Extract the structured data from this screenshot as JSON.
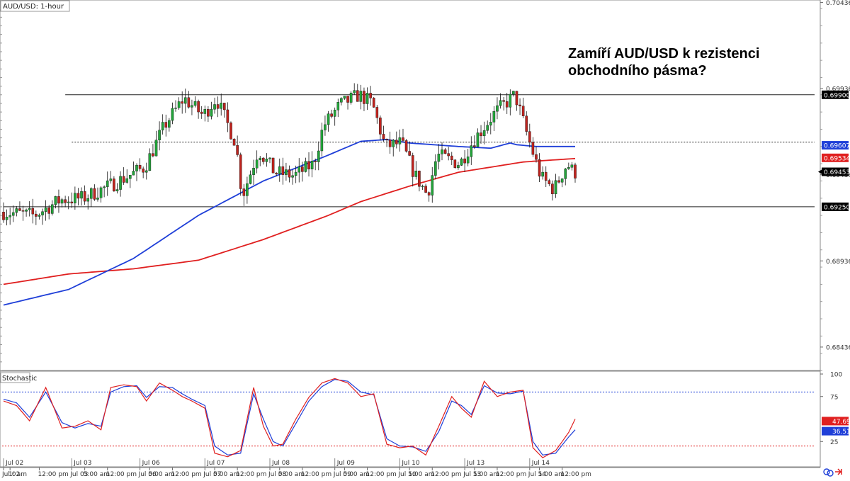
{
  "chart_data": {
    "type": "candlestick",
    "symbol_label": "AUD/USD: 1-hour",
    "headline": [
      "Zamíří AUD/USD k rezistenci",
      "obchodního pásma?"
    ],
    "ylim": [
      0.683,
      0.7045
    ],
    "y_ticks": [
      "0.70436",
      "0.69936",
      "0.69436",
      "0.68936",
      "0.68436"
    ],
    "x_labels": [
      {
        "label": "Jul 02",
        "bar": 0
      },
      {
        "label": "1: am",
        "bar": 2
      },
      {
        "label": "12:00 pm",
        "bar": 11
      },
      {
        "label": "Jul 03",
        "bar": 21
      },
      {
        "label": "5:00 am",
        "bar": 25
      },
      {
        "label": "12:00 pm",
        "bar": 32
      },
      {
        "label": "Jul 06",
        "bar": 42
      },
      {
        "label": "5:00 am",
        "bar": 45
      },
      {
        "label": "12:00 pm",
        "bar": 52
      },
      {
        "label": "Jul 07",
        "bar": 62
      },
      {
        "label": "5:00 am",
        "bar": 65
      },
      {
        "label": "12:00 pm",
        "bar": 72
      },
      {
        "label": "Jul 08",
        "bar": 82
      },
      {
        "label": "5:00 am",
        "bar": 85
      },
      {
        "label": "12:00 pm",
        "bar": 92
      },
      {
        "label": "Jul 09",
        "bar": 102
      },
      {
        "label": "5:00 am",
        "bar": 105
      },
      {
        "label": "12:00 pm",
        "bar": 112
      },
      {
        "label": "Jul 10",
        "bar": 122
      },
      {
        "label": "5:00 am",
        "bar": 125
      },
      {
        "label": "12:00 pm",
        "bar": 132
      },
      {
        "label": "Jul 13",
        "bar": 142
      },
      {
        "label": "5:00 am",
        "bar": 145
      },
      {
        "label": "12:00 pm",
        "bar": 152
      },
      {
        "label": "Jul 14",
        "bar": 162
      },
      {
        "label": "5:00 am",
        "bar": 165
      },
      {
        "label": "12:00 pm",
        "bar": 172
      }
    ],
    "levels": [
      {
        "name": "resistance",
        "value": 0.699,
        "label": "0.69900",
        "style": "solid",
        "from_bar": 19
      },
      {
        "name": "midline",
        "value": 0.69625,
        "style": "dotted",
        "from_bar": 21
      },
      {
        "name": "support",
        "value": 0.6925,
        "label": "0.69250",
        "style": "solid",
        "from_bar": 0
      }
    ],
    "price_tags": [
      {
        "name": "ma-blue",
        "value": 0.69607,
        "label": "0.69607",
        "bg": "#1f3fd8",
        "fg": "#ffffff"
      },
      {
        "name": "ma-red",
        "value": 0.69534,
        "label": "0.69534",
        "bg": "#e02020",
        "fg": "#ffffff"
      },
      {
        "name": "last",
        "value": 0.69453,
        "label": "0.69453",
        "bg": "#000000",
        "fg": "#ffffff"
      }
    ],
    "ohlc_anchors": [
      [
        0,
        0.6922
      ],
      [
        10,
        0.692
      ],
      [
        18,
        0.6929
      ],
      [
        25,
        0.693
      ],
      [
        34,
        0.6938
      ],
      [
        44,
        0.6948
      ],
      [
        50,
        0.6972
      ],
      [
        56,
        0.6988
      ],
      [
        62,
        0.6978
      ],
      [
        66,
        0.6988
      ],
      [
        72,
        0.6962
      ],
      [
        74,
        0.6931
      ],
      [
        79,
        0.6958
      ],
      [
        84,
        0.6945
      ],
      [
        90,
        0.6943
      ],
      [
        96,
        0.695
      ],
      [
        99,
        0.6972
      ],
      [
        104,
        0.6984
      ],
      [
        110,
        0.699
      ],
      [
        114,
        0.6985
      ],
      [
        118,
        0.696
      ],
      [
        123,
        0.6962
      ],
      [
        127,
        0.6944
      ],
      [
        131,
        0.6932
      ],
      [
        134,
        0.6955
      ],
      [
        141,
        0.695
      ],
      [
        145,
        0.6963
      ],
      [
        152,
        0.698
      ],
      [
        158,
        0.699
      ],
      [
        162,
        0.6965
      ],
      [
        166,
        0.6942
      ],
      [
        170,
        0.6935
      ],
      [
        174,
        0.695
      ],
      [
        176,
        0.6945
      ]
    ],
    "ma_blue": [
      [
        0,
        0.6868
      ],
      [
        20,
        0.6877
      ],
      [
        40,
        0.6895
      ],
      [
        60,
        0.692
      ],
      [
        80,
        0.694
      ],
      [
        100,
        0.6955
      ],
      [
        110,
        0.6963
      ],
      [
        118,
        0.6964
      ],
      [
        125,
        0.6962
      ],
      [
        140,
        0.696
      ],
      [
        150,
        0.6959
      ],
      [
        156,
        0.6962
      ],
      [
        158,
        0.6961
      ],
      [
        164,
        0.696
      ],
      [
        176,
        0.696
      ]
    ],
    "ma_red": [
      [
        0,
        0.688
      ],
      [
        20,
        0.6886
      ],
      [
        40,
        0.6889
      ],
      [
        60,
        0.6894
      ],
      [
        80,
        0.6906
      ],
      [
        100,
        0.692
      ],
      [
        110,
        0.6928
      ],
      [
        125,
        0.6937
      ],
      [
        140,
        0.6945
      ],
      [
        160,
        0.6951
      ],
      [
        176,
        0.6953
      ]
    ],
    "stochastic": {
      "label": "Stochastic",
      "ylim": [
        0,
        100
      ],
      "ticks": [
        "100",
        "75",
        "25"
      ],
      "overbought": 80,
      "oversold": 20,
      "k_label": "47.69",
      "d_label": "36.51",
      "k_value": 47.69,
      "d_value": 36.51,
      "k_anchors": [
        [
          0,
          70
        ],
        [
          4,
          65
        ],
        [
          8,
          48
        ],
        [
          13,
          85
        ],
        [
          18,
          40
        ],
        [
          22,
          42
        ],
        [
          26,
          48
        ],
        [
          30,
          38
        ],
        [
          33,
          85
        ],
        [
          37,
          88
        ],
        [
          41,
          86
        ],
        [
          44,
          70
        ],
        [
          48,
          90
        ],
        [
          52,
          82
        ],
        [
          55,
          75
        ],
        [
          58,
          70
        ],
        [
          62,
          62
        ],
        [
          65,
          12
        ],
        [
          69,
          8
        ],
        [
          73,
          15
        ],
        [
          77,
          85
        ],
        [
          80,
          42
        ],
        [
          83,
          20
        ],
        [
          86,
          22
        ],
        [
          90,
          50
        ],
        [
          94,
          74
        ],
        [
          98,
          90
        ],
        [
          102,
          95
        ],
        [
          106,
          90
        ],
        [
          110,
          75
        ],
        [
          114,
          78
        ],
        [
          118,
          22
        ],
        [
          122,
          18
        ],
        [
          126,
          20
        ],
        [
          130,
          10
        ],
        [
          134,
          42
        ],
        [
          138,
          75
        ],
        [
          141,
          62
        ],
        [
          144,
          52
        ],
        [
          148,
          92
        ],
        [
          152,
          75
        ],
        [
          156,
          80
        ],
        [
          160,
          82
        ],
        [
          163,
          18
        ],
        [
          166,
          7
        ],
        [
          170,
          15
        ],
        [
          174,
          35
        ],
        [
          176,
          50
        ]
      ],
      "d_anchors": [
        [
          0,
          72
        ],
        [
          4,
          68
        ],
        [
          8,
          52
        ],
        [
          13,
          80
        ],
        [
          18,
          46
        ],
        [
          22,
          40
        ],
        [
          26,
          45
        ],
        [
          30,
          42
        ],
        [
          33,
          80
        ],
        [
          37,
          86
        ],
        [
          41,
          87
        ],
        [
          44,
          74
        ],
        [
          48,
          86
        ],
        [
          52,
          85
        ],
        [
          55,
          78
        ],
        [
          58,
          72
        ],
        [
          62,
          65
        ],
        [
          65,
          20
        ],
        [
          69,
          10
        ],
        [
          73,
          12
        ],
        [
          77,
          78
        ],
        [
          80,
          50
        ],
        [
          83,
          25
        ],
        [
          86,
          20
        ],
        [
          90,
          45
        ],
        [
          94,
          70
        ],
        [
          98,
          86
        ],
        [
          102,
          94
        ],
        [
          106,
          92
        ],
        [
          110,
          80
        ],
        [
          114,
          77
        ],
        [
          118,
          28
        ],
        [
          122,
          20
        ],
        [
          126,
          19
        ],
        [
          130,
          14
        ],
        [
          134,
          36
        ],
        [
          138,
          70
        ],
        [
          141,
          65
        ],
        [
          144,
          55
        ],
        [
          148,
          87
        ],
        [
          152,
          79
        ],
        [
          156,
          78
        ],
        [
          160,
          81
        ],
        [
          163,
          25
        ],
        [
          166,
          10
        ],
        [
          170,
          12
        ],
        [
          174,
          30
        ],
        [
          176,
          38
        ]
      ]
    },
    "colors": {
      "up": "#22a63a",
      "down": "#c0231e",
      "wick": "#111111",
      "ma_blue": "#1f3fd8",
      "ma_red": "#e02020",
      "k": "#e02020",
      "d": "#1f3fd8",
      "grid": "#dddddd"
    },
    "icons": [
      "chat-icon",
      "arrow-icon"
    ]
  }
}
